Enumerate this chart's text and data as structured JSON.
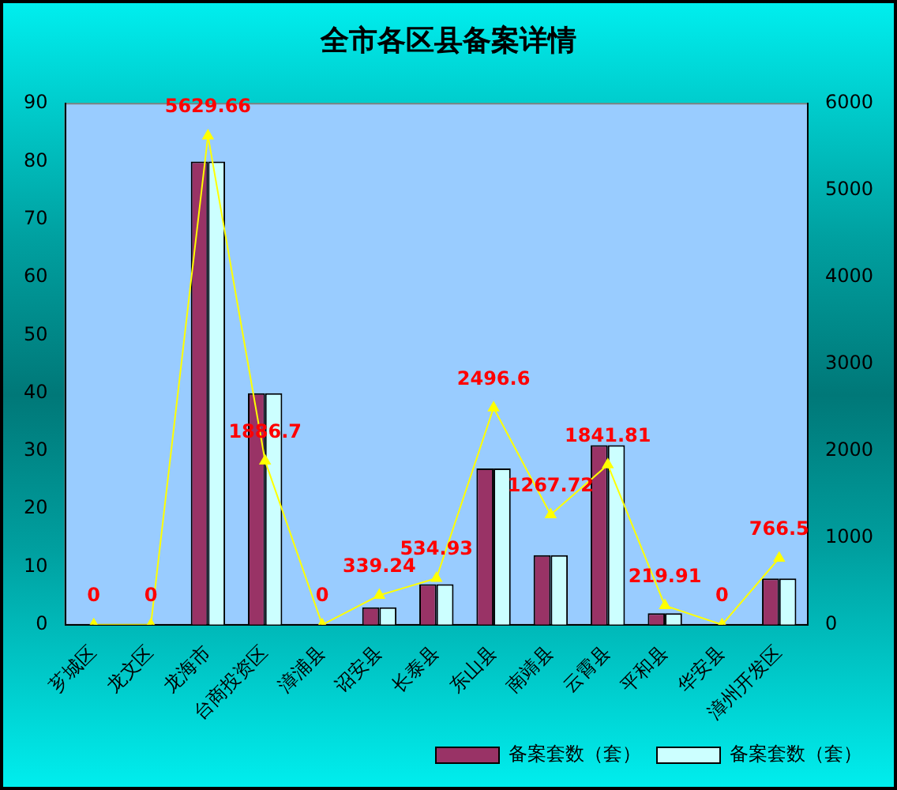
{
  "chart_data": {
    "type": "bar",
    "title": "全市各区县备案详情",
    "categories": [
      "芗城区",
      "龙文区",
      "龙海市",
      "台商投资区",
      "漳浦县",
      "诏安县",
      "长泰县",
      "东山县",
      "南靖县",
      "云霄县",
      "平和县",
      "华安县",
      "漳州开发区"
    ],
    "series": [
      {
        "name": "备案套数（套）",
        "color": "#993366",
        "values": [
          0,
          0,
          80,
          40,
          0,
          3,
          7,
          27,
          12,
          31,
          2,
          0,
          8
        ]
      },
      {
        "name": "备案套数（套）",
        "color": "#ccffff",
        "values": [
          0,
          0,
          80,
          40,
          0,
          3,
          7,
          27,
          12,
          31,
          2,
          0,
          8
        ]
      },
      {
        "type": "line",
        "axis": "y2",
        "color": "#ffff00",
        "values": [
          0,
          0,
          5629.66,
          1886.7,
          0,
          339.24,
          534.93,
          2496.6,
          1267.72,
          1841.81,
          219.91,
          0,
          766.5
        ],
        "value_labels": [
          "0",
          "0",
          "5629.66",
          "1886.7",
          "0",
          "339.24",
          "534.93",
          "2496.6",
          "1267.72",
          "1841.81",
          "219.91",
          "0",
          "766.5"
        ]
      }
    ],
    "ylim": [
      0,
      90
    ],
    "yticks": [
      0,
      10,
      20,
      30,
      40,
      50,
      60,
      70,
      80,
      90
    ],
    "y2lim": [
      0,
      6000
    ],
    "y2ticks": [
      0,
      1000,
      2000,
      3000,
      4000,
      5000,
      6000
    ],
    "grid": false,
    "legend": "bottom right",
    "marker": "triangle"
  }
}
